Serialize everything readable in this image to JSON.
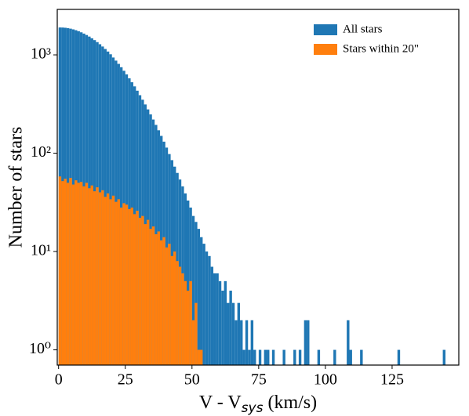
{
  "chart_data": {
    "type": "histogram",
    "xlabel": [
      "V - V",
      "sys",
      " (km/s)"
    ],
    "ylabel": "Number of stars",
    "bins": [
      0,
      1,
      2,
      3,
      4,
      5,
      6,
      7,
      8,
      9,
      10,
      11,
      12,
      13,
      14,
      15,
      16,
      17,
      18,
      19,
      20,
      21,
      22,
      23,
      24,
      25,
      26,
      27,
      28,
      29,
      30,
      31,
      32,
      33,
      34,
      35,
      36,
      37,
      38,
      39,
      40,
      41,
      42,
      43,
      44,
      45,
      46,
      47,
      48,
      49,
      50,
      51,
      52,
      53,
      54,
      55,
      56,
      57,
      58,
      59,
      60,
      61,
      62,
      63,
      64,
      65,
      66,
      67,
      68,
      69,
      70,
      71,
      72,
      73,
      74,
      75,
      76,
      77,
      78,
      79,
      80,
      81,
      82,
      83,
      84,
      85,
      86,
      87,
      88,
      89,
      90,
      91,
      92,
      93,
      94,
      95,
      96,
      97,
      98,
      99,
      100,
      101,
      102,
      103,
      104,
      105,
      106,
      107,
      108,
      109,
      110,
      111,
      112,
      113,
      114,
      115,
      116,
      117,
      118,
      119,
      120,
      121,
      122,
      123,
      124,
      125,
      126,
      127,
      128,
      129,
      130,
      131,
      132,
      133,
      134,
      135,
      136,
      137,
      138,
      139,
      140,
      141,
      142,
      143,
      144,
      145,
      146
    ],
    "series": [
      {
        "name": "All stars",
        "color": "#1f77b4",
        "values": [
          1900,
          1897,
          1887,
          1870,
          1847,
          1817,
          1782,
          1741,
          1696,
          1646,
          1592,
          1535,
          1475,
          1413,
          1348,
          1283,
          1216,
          1148,
          1081,
          1014,
          940,
          874,
          810,
          749,
          689,
          633,
          578,
          527,
          478,
          432,
          389,
          350,
          313,
          279,
          248,
          220,
          194,
          171,
          150,
          131,
          114,
          98,
          85,
          73,
          63,
          54,
          46,
          39,
          33,
          28,
          23,
          20,
          17,
          14,
          12,
          10,
          9,
          7,
          6,
          6,
          5,
          4,
          5,
          3,
          4,
          3,
          2,
          3,
          2,
          1,
          2,
          1,
          2,
          1,
          0,
          1,
          0,
          1,
          1,
          0,
          1,
          0,
          0,
          0,
          1,
          0,
          0,
          0,
          1,
          0,
          1,
          0,
          2,
          2,
          0,
          0,
          0,
          1,
          0,
          0,
          0,
          0,
          0,
          1,
          0,
          0,
          0,
          0,
          2,
          1,
          0,
          0,
          0,
          1,
          0,
          0,
          0,
          0,
          0,
          0,
          0,
          0,
          0,
          0,
          0,
          0,
          0,
          1,
          0,
          0,
          0,
          0,
          0,
          0,
          0,
          0,
          0,
          0,
          0,
          0,
          0,
          0,
          0,
          0,
          1,
          0
        ]
      },
      {
        "name": "Stars within 20\"",
        "color": "#ff7f0e",
        "values": [
          58,
          52,
          55,
          50,
          56,
          48,
          53,
          50,
          51,
          46,
          50,
          44,
          47,
          41,
          45,
          40,
          42,
          36,
          39,
          34,
          37,
          32,
          34,
          28,
          31,
          30,
          27,
          28,
          24,
          26,
          22,
          23,
          19,
          21,
          17,
          18,
          15,
          16,
          13,
          14,
          11,
          12,
          9,
          10,
          8,
          7,
          6,
          5,
          4,
          5,
          2,
          3,
          1,
          1,
          0,
          0,
          0,
          0,
          0,
          0,
          0,
          0,
          0,
          0,
          0,
          0,
          0,
          0,
          0,
          0,
          0,
          0,
          0,
          0,
          0,
          0,
          0,
          0,
          0,
          0,
          0,
          0,
          0,
          0,
          0,
          0,
          0,
          0,
          0,
          0,
          0,
          0,
          0,
          0,
          0,
          0,
          0,
          0,
          0,
          0,
          0,
          0,
          0,
          0,
          0,
          0,
          0,
          0,
          0,
          0,
          0,
          0,
          0,
          0,
          0,
          0,
          0,
          0,
          0,
          0,
          0,
          0,
          0,
          0,
          0,
          0,
          0,
          0,
          0,
          0,
          0,
          0,
          0,
          0,
          0,
          0,
          0,
          0,
          0,
          0,
          0,
          0,
          0,
          0,
          0,
          0
        ]
      }
    ],
    "xlim": [
      -0.5,
      150
    ],
    "ylim": [
      0.7,
      2900
    ],
    "yscale": "log",
    "xticks": [
      0,
      25,
      50,
      75,
      100,
      125
    ],
    "yticks": [
      {
        "value": 1,
        "label": "10⁰"
      },
      {
        "value": 10,
        "label": "10¹"
      },
      {
        "value": 100,
        "label": "10²"
      },
      {
        "value": 1000,
        "label": "10³"
      }
    ],
    "legend": "upper right"
  }
}
